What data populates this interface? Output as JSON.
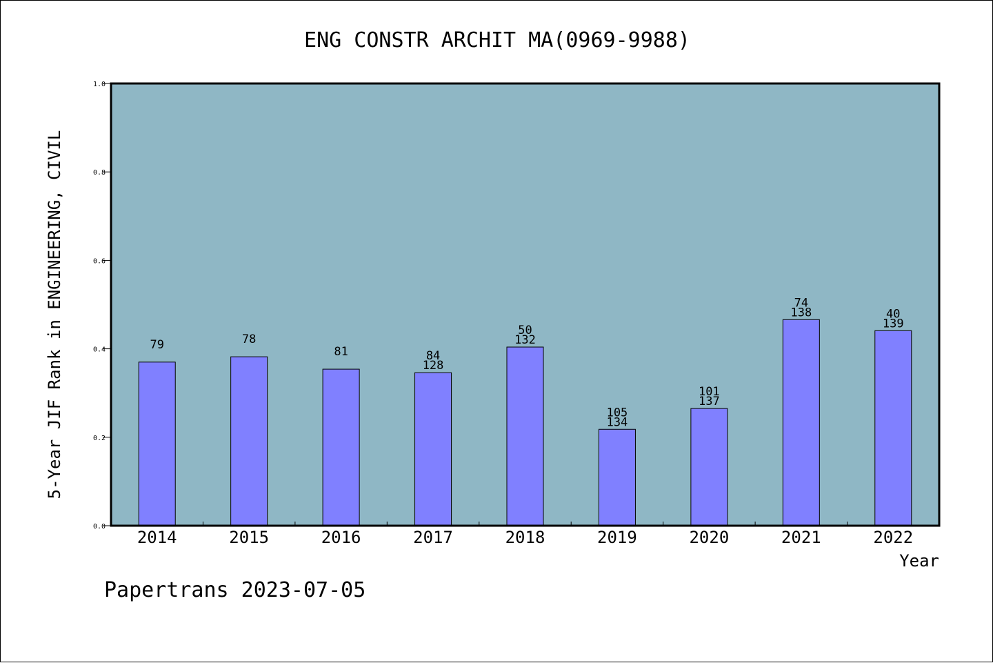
{
  "footer": {
    "text": "Papertrans 2023-07-05"
  },
  "colors": {
    "plot_background": "#8fb7c5",
    "bar_fill": "#8080ff",
    "axis": "#000000"
  },
  "chart_data": {
    "type": "bar",
    "title": "ENG CONSTR ARCHIT MA(0969-9988)",
    "xlabel": "Year",
    "ylabel": "5-Year JIF Rank in ENGINEERING, CIVIL",
    "ylim": [
      0,
      1.0
    ],
    "yticks": [
      "0.0",
      "0.2",
      "0.4",
      "0.6",
      "0.8",
      "1.0"
    ],
    "grid": false,
    "categories": [
      "2014",
      "2015",
      "2016",
      "2017",
      "2018",
      "2019",
      "2020",
      "2021",
      "2022"
    ],
    "values": [
      0.37,
      0.382,
      0.354,
      0.346,
      0.404,
      0.218,
      0.265,
      0.466,
      0.441
    ],
    "rank_labels": [
      "79",
      "78",
      "81",
      "84",
      "50",
      "105",
      "101",
      "74",
      "40"
    ],
    "total_labels": [
      "",
      "",
      "",
      "128",
      "132",
      "134",
      "137",
      "138",
      "139"
    ]
  }
}
